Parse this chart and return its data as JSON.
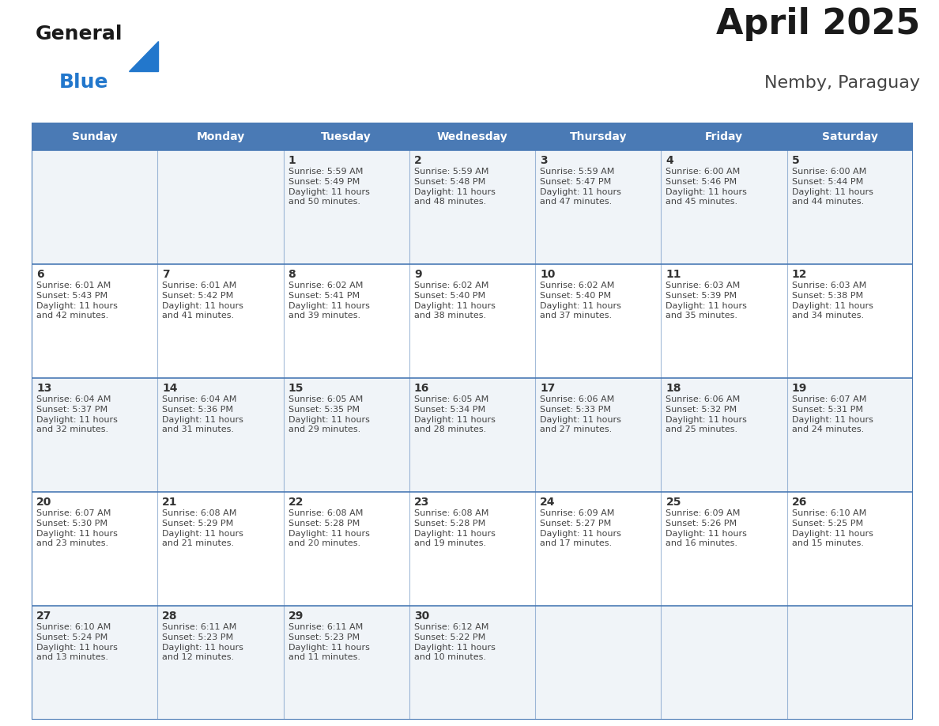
{
  "title": "April 2025",
  "subtitle": "Nemby, Paraguay",
  "days_of_week": [
    "Sunday",
    "Monday",
    "Tuesday",
    "Wednesday",
    "Thursday",
    "Friday",
    "Saturday"
  ],
  "header_bg_color": "#4a7ab5",
  "header_text_color": "#ffffff",
  "cell_bg_odd": "#f0f4f8",
  "cell_bg_even": "#ffffff",
  "cell_border_color": "#4a7ab5",
  "day_number_color": "#333333",
  "cell_text_color": "#444444",
  "title_color": "#1a1a1a",
  "subtitle_color": "#444444",
  "general_blue_color": "#2277cc",
  "general_text_color": "#1a1a1a",
  "weeks": [
    [
      {
        "day": null,
        "text": ""
      },
      {
        "day": null,
        "text": ""
      },
      {
        "day": 1,
        "text": "Sunrise: 5:59 AM\nSunset: 5:49 PM\nDaylight: 11 hours\nand 50 minutes."
      },
      {
        "day": 2,
        "text": "Sunrise: 5:59 AM\nSunset: 5:48 PM\nDaylight: 11 hours\nand 48 minutes."
      },
      {
        "day": 3,
        "text": "Sunrise: 5:59 AM\nSunset: 5:47 PM\nDaylight: 11 hours\nand 47 minutes."
      },
      {
        "day": 4,
        "text": "Sunrise: 6:00 AM\nSunset: 5:46 PM\nDaylight: 11 hours\nand 45 minutes."
      },
      {
        "day": 5,
        "text": "Sunrise: 6:00 AM\nSunset: 5:44 PM\nDaylight: 11 hours\nand 44 minutes."
      }
    ],
    [
      {
        "day": 6,
        "text": "Sunrise: 6:01 AM\nSunset: 5:43 PM\nDaylight: 11 hours\nand 42 minutes."
      },
      {
        "day": 7,
        "text": "Sunrise: 6:01 AM\nSunset: 5:42 PM\nDaylight: 11 hours\nand 41 minutes."
      },
      {
        "day": 8,
        "text": "Sunrise: 6:02 AM\nSunset: 5:41 PM\nDaylight: 11 hours\nand 39 minutes."
      },
      {
        "day": 9,
        "text": "Sunrise: 6:02 AM\nSunset: 5:40 PM\nDaylight: 11 hours\nand 38 minutes."
      },
      {
        "day": 10,
        "text": "Sunrise: 6:02 AM\nSunset: 5:40 PM\nDaylight: 11 hours\nand 37 minutes."
      },
      {
        "day": 11,
        "text": "Sunrise: 6:03 AM\nSunset: 5:39 PM\nDaylight: 11 hours\nand 35 minutes."
      },
      {
        "day": 12,
        "text": "Sunrise: 6:03 AM\nSunset: 5:38 PM\nDaylight: 11 hours\nand 34 minutes."
      }
    ],
    [
      {
        "day": 13,
        "text": "Sunrise: 6:04 AM\nSunset: 5:37 PM\nDaylight: 11 hours\nand 32 minutes."
      },
      {
        "day": 14,
        "text": "Sunrise: 6:04 AM\nSunset: 5:36 PM\nDaylight: 11 hours\nand 31 minutes."
      },
      {
        "day": 15,
        "text": "Sunrise: 6:05 AM\nSunset: 5:35 PM\nDaylight: 11 hours\nand 29 minutes."
      },
      {
        "day": 16,
        "text": "Sunrise: 6:05 AM\nSunset: 5:34 PM\nDaylight: 11 hours\nand 28 minutes."
      },
      {
        "day": 17,
        "text": "Sunrise: 6:06 AM\nSunset: 5:33 PM\nDaylight: 11 hours\nand 27 minutes."
      },
      {
        "day": 18,
        "text": "Sunrise: 6:06 AM\nSunset: 5:32 PM\nDaylight: 11 hours\nand 25 minutes."
      },
      {
        "day": 19,
        "text": "Sunrise: 6:07 AM\nSunset: 5:31 PM\nDaylight: 11 hours\nand 24 minutes."
      }
    ],
    [
      {
        "day": 20,
        "text": "Sunrise: 6:07 AM\nSunset: 5:30 PM\nDaylight: 11 hours\nand 23 minutes."
      },
      {
        "day": 21,
        "text": "Sunrise: 6:08 AM\nSunset: 5:29 PM\nDaylight: 11 hours\nand 21 minutes."
      },
      {
        "day": 22,
        "text": "Sunrise: 6:08 AM\nSunset: 5:28 PM\nDaylight: 11 hours\nand 20 minutes."
      },
      {
        "day": 23,
        "text": "Sunrise: 6:08 AM\nSunset: 5:28 PM\nDaylight: 11 hours\nand 19 minutes."
      },
      {
        "day": 24,
        "text": "Sunrise: 6:09 AM\nSunset: 5:27 PM\nDaylight: 11 hours\nand 17 minutes."
      },
      {
        "day": 25,
        "text": "Sunrise: 6:09 AM\nSunset: 5:26 PM\nDaylight: 11 hours\nand 16 minutes."
      },
      {
        "day": 26,
        "text": "Sunrise: 6:10 AM\nSunset: 5:25 PM\nDaylight: 11 hours\nand 15 minutes."
      }
    ],
    [
      {
        "day": 27,
        "text": "Sunrise: 6:10 AM\nSunset: 5:24 PM\nDaylight: 11 hours\nand 13 minutes."
      },
      {
        "day": 28,
        "text": "Sunrise: 6:11 AM\nSunset: 5:23 PM\nDaylight: 11 hours\nand 12 minutes."
      },
      {
        "day": 29,
        "text": "Sunrise: 6:11 AM\nSunset: 5:23 PM\nDaylight: 11 hours\nand 11 minutes."
      },
      {
        "day": 30,
        "text": "Sunrise: 6:12 AM\nSunset: 5:22 PM\nDaylight: 11 hours\nand 10 minutes."
      },
      {
        "day": null,
        "text": ""
      },
      {
        "day": null,
        "text": ""
      },
      {
        "day": null,
        "text": ""
      }
    ]
  ]
}
